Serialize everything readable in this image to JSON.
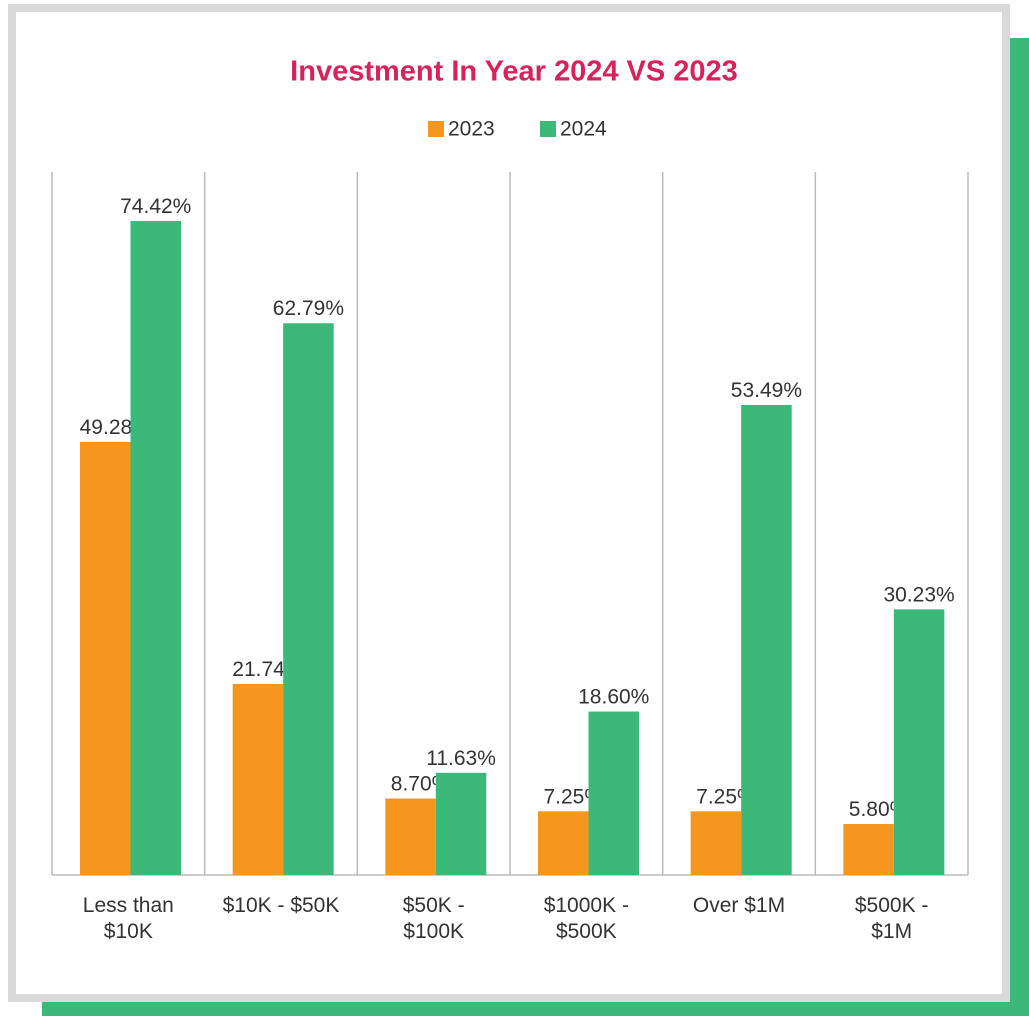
{
  "chart_data": {
    "type": "bar",
    "title": "Investment In Year 2024 VS 2023",
    "categories": [
      "Less than\n$10K",
      "$10K - $50K",
      "$50K -\n$100K",
      "$1000K -\n$500K",
      "Over $1M",
      "$500K -\n$1M"
    ],
    "series": [
      {
        "name": "2023",
        "color": "#f7961e",
        "values": [
          49.28,
          21.74,
          8.7,
          7.25,
          7.25,
          5.8
        ],
        "value_labels": [
          "49.28%",
          "21.74%",
          "8.70%",
          "7.25%",
          "7.25%",
          "5.80%"
        ]
      },
      {
        "name": "2024",
        "color": "#3cb878",
        "values": [
          74.42,
          62.79,
          11.63,
          18.6,
          53.49,
          30.23
        ],
        "value_labels": [
          "74.42%",
          "62.79%",
          "11.63%",
          "18.60%",
          "53.49%",
          "30.23%"
        ]
      }
    ],
    "ylim": [
      0,
      80
    ],
    "legend": "top"
  }
}
